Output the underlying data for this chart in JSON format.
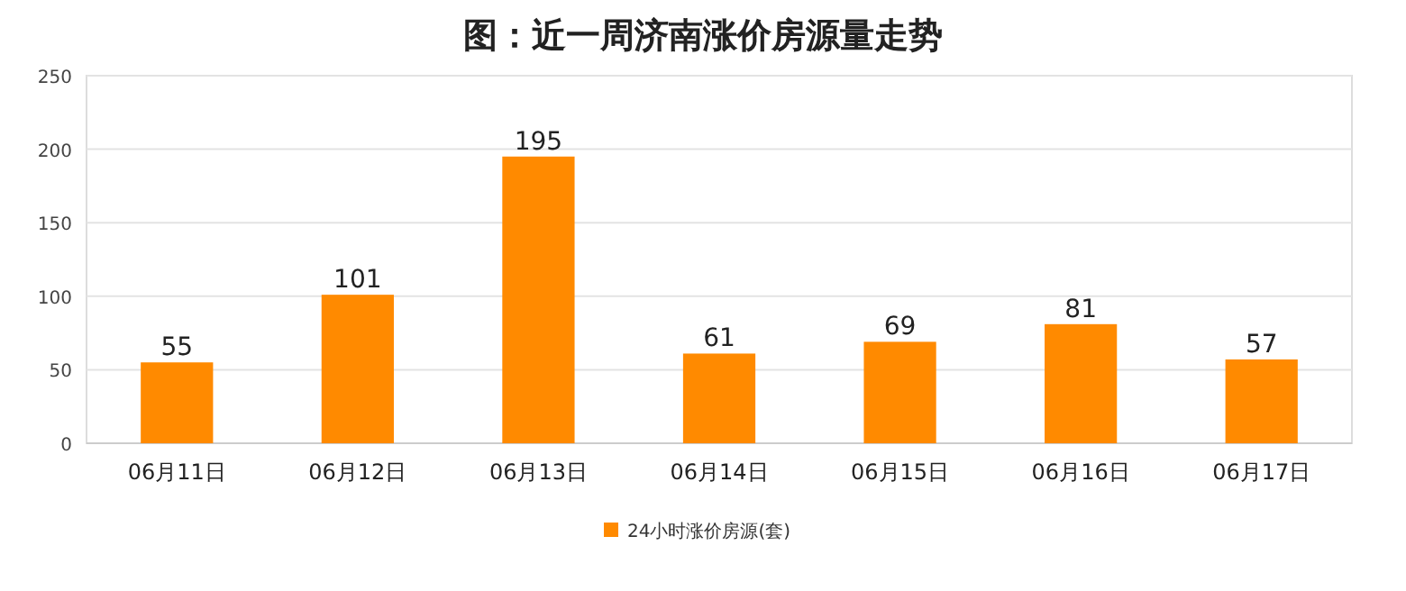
{
  "chart_data": {
    "type": "bar",
    "title": "图：近一周济南涨价房源量走势",
    "categories": [
      "06月11日",
      "06月12日",
      "06月13日",
      "06月14日",
      "06月15日",
      "06月16日",
      "06月17日"
    ],
    "series": [
      {
        "name": "24小时涨价房源(套)",
        "color": "#ff8a00",
        "values": [
          55,
          101,
          195,
          61,
          69,
          81,
          57
        ]
      }
    ],
    "ylim": [
      0,
      250
    ],
    "yticks": [
      0,
      50,
      100,
      150,
      200,
      250
    ],
    "grid": "y",
    "legend": "bottom",
    "data_labels": true
  }
}
